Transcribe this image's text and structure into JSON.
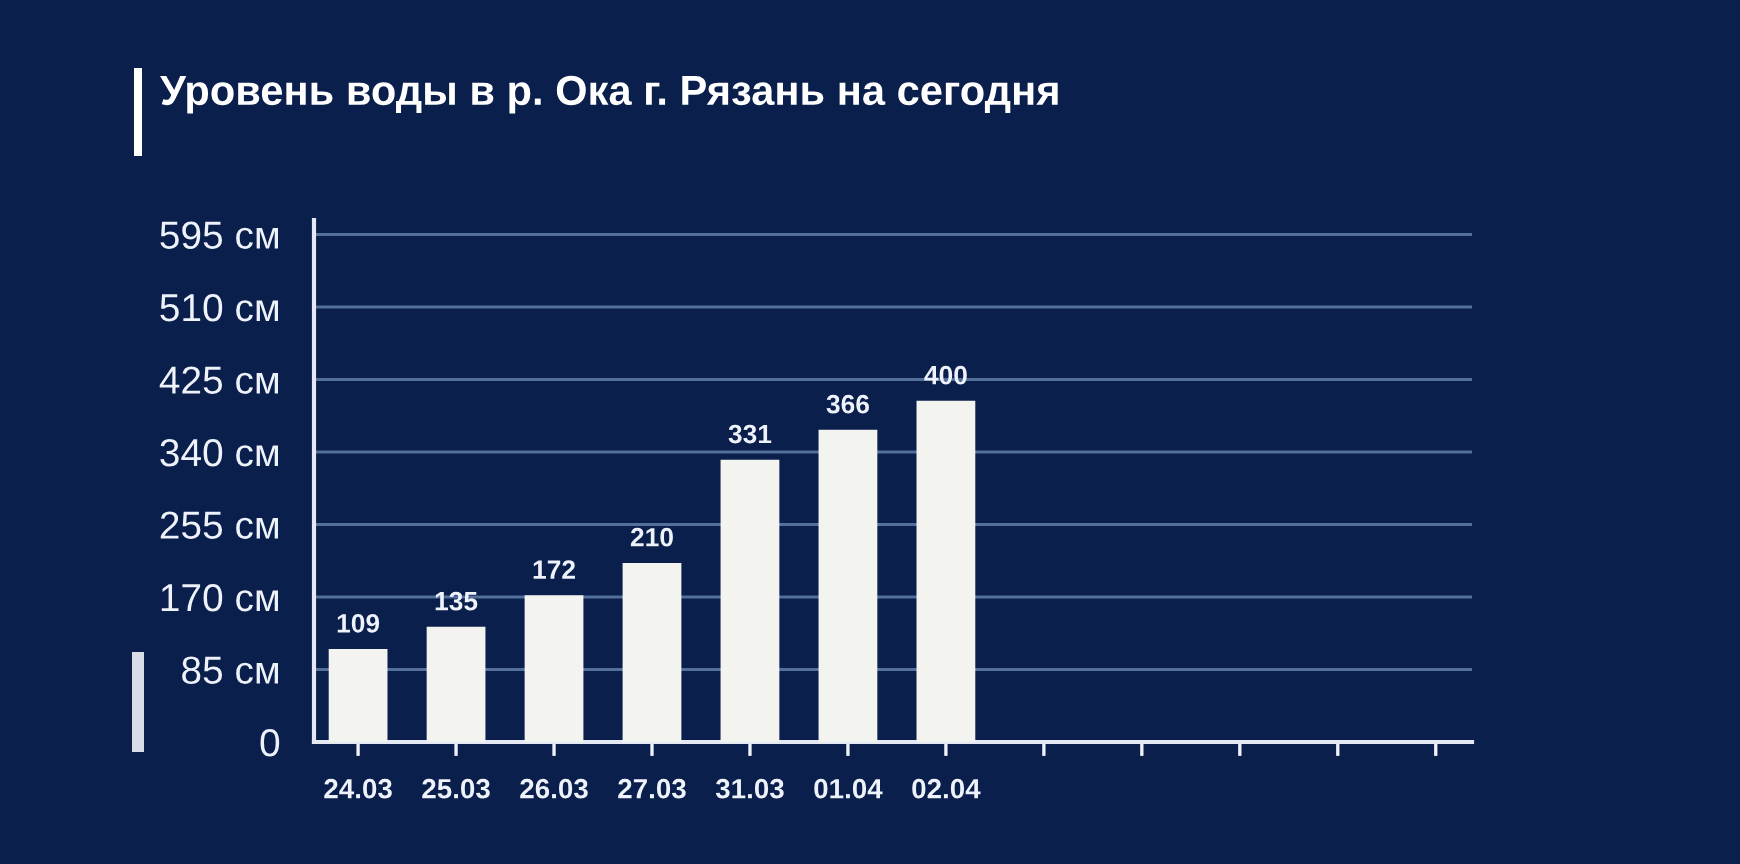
{
  "chart_data": {
    "type": "bar",
    "title": "Уровень воды в р. Ока г. Рязань на сегодня",
    "categories": [
      "24.03",
      "25.03",
      "26.03",
      "27.03",
      "31.03",
      "01.04",
      "02.04",
      null,
      null,
      null,
      null,
      null
    ],
    "values": [
      109,
      135,
      172,
      210,
      331,
      366,
      400,
      null,
      null,
      null,
      null,
      null
    ],
    "color": "#f3f3f0",
    "ylim": [
      0,
      612
    ],
    "yticks": [
      0,
      {
        "value": 85,
        "label": "85 см"
      },
      {
        "value": 170,
        "label": "170 см"
      },
      {
        "value": 255,
        "label": "255 см"
      },
      {
        "value": 340,
        "label": "340 см"
      },
      {
        "value": 425,
        "label": "425 см"
      },
      {
        "value": 510,
        "label": "510 см"
      },
      {
        "value": 595,
        "label": "595 см"
      }
    ],
    "grid": "y",
    "data_labels": true
  }
}
